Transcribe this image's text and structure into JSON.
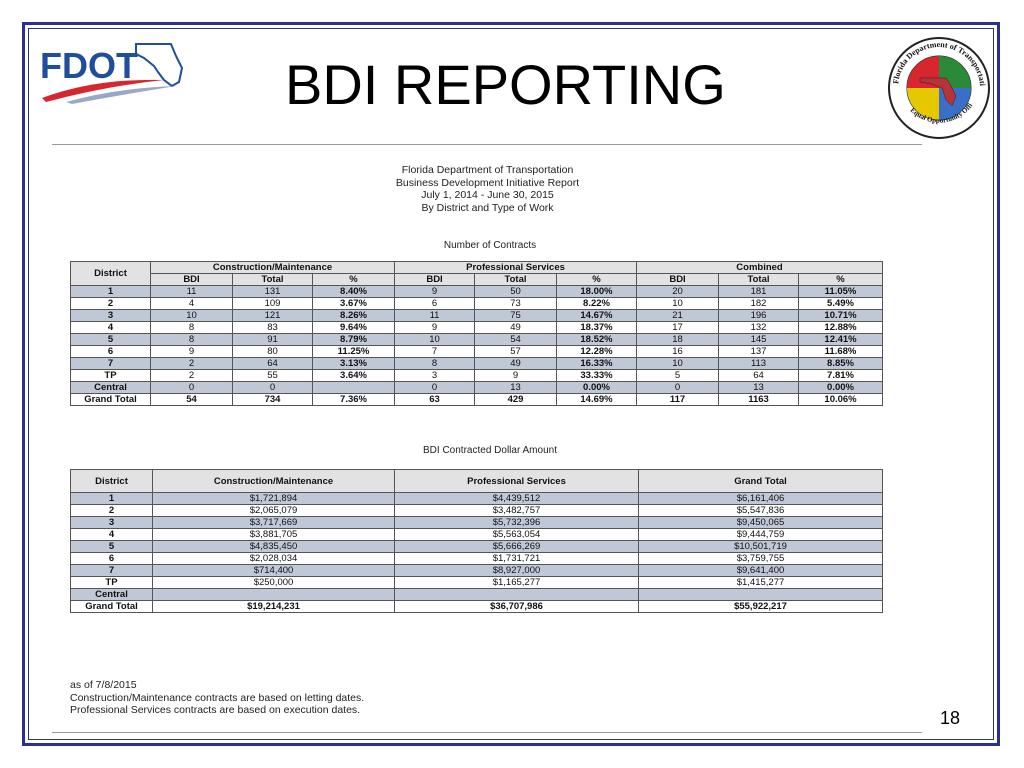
{
  "slide": {
    "title": "BDI REPORTING",
    "page_number": "18",
    "logo_text": "FDOT",
    "seal_text_top": "Florida Department of Transportation",
    "seal_text_bottom": "Equal Opportunity Office"
  },
  "report": {
    "line1": "Florida Department of Transportation",
    "line2": "Business Development Initiative Report",
    "line3": "July 1, 2014 - June 30, 2015",
    "line4": "By District and Type of Work"
  },
  "contracts_table": {
    "caption": "Number of Contracts",
    "district_label": "District",
    "group_headers": [
      "Construction/Maintenance",
      "Professional Services",
      "Combined"
    ],
    "sub_headers": [
      "BDI",
      "Total",
      "%",
      "BDI",
      "Total",
      "%",
      "BDI",
      "Total",
      "%"
    ],
    "rows": [
      {
        "district": "1",
        "cells": [
          "11",
          "131",
          "8.40%",
          "9",
          "50",
          "18.00%",
          "20",
          "181",
          "11.05%"
        ]
      },
      {
        "district": "2",
        "cells": [
          "4",
          "109",
          "3.67%",
          "6",
          "73",
          "8.22%",
          "10",
          "182",
          "5.49%"
        ]
      },
      {
        "district": "3",
        "cells": [
          "10",
          "121",
          "8.26%",
          "11",
          "75",
          "14.67%",
          "21",
          "196",
          "10.71%"
        ]
      },
      {
        "district": "4",
        "cells": [
          "8",
          "83",
          "9.64%",
          "9",
          "49",
          "18.37%",
          "17",
          "132",
          "12.88%"
        ]
      },
      {
        "district": "5",
        "cells": [
          "8",
          "91",
          "8.79%",
          "10",
          "54",
          "18.52%",
          "18",
          "145",
          "12.41%"
        ]
      },
      {
        "district": "6",
        "cells": [
          "9",
          "80",
          "11.25%",
          "7",
          "57",
          "12.28%",
          "16",
          "137",
          "11.68%"
        ]
      },
      {
        "district": "7",
        "cells": [
          "2",
          "64",
          "3.13%",
          "8",
          "49",
          "16.33%",
          "10",
          "113",
          "8.85%"
        ]
      },
      {
        "district": "TP",
        "cells": [
          "2",
          "55",
          "3.64%",
          "3",
          "9",
          "33.33%",
          "5",
          "64",
          "7.81%"
        ]
      },
      {
        "district": "Central",
        "cells": [
          "0",
          "0",
          "",
          "0",
          "13",
          "0.00%",
          "0",
          "13",
          "0.00%"
        ]
      }
    ],
    "grand_total": {
      "district": "Grand Total",
      "cells": [
        "54",
        "734",
        "7.36%",
        "63",
        "429",
        "14.69%",
        "117",
        "1163",
        "10.06%"
      ]
    }
  },
  "dollars_table": {
    "caption": "BDI Contracted Dollar Amount",
    "headers": [
      "District",
      "Construction/Maintenance",
      "Professional Services",
      "Grand Total"
    ],
    "rows": [
      {
        "district": "1",
        "cells": [
          "$1,721,894",
          "$4,439,512",
          "$6,161,406"
        ]
      },
      {
        "district": "2",
        "cells": [
          "$2,065,079",
          "$3,482,757",
          "$5,547,836"
        ]
      },
      {
        "district": "3",
        "cells": [
          "$3,717,669",
          "$5,732,396",
          "$9,450,065"
        ]
      },
      {
        "district": "4",
        "cells": [
          "$3,881,705",
          "$5,563,054",
          "$9,444,759"
        ]
      },
      {
        "district": "5",
        "cells": [
          "$4,835,450",
          "$5,666,269",
          "$10,501,719"
        ]
      },
      {
        "district": "6",
        "cells": [
          "$2,028,034",
          "$1,731,721",
          "$3,759,755"
        ]
      },
      {
        "district": "7",
        "cells": [
          "$714,400",
          "$8,927,000",
          "$9,641,400"
        ]
      },
      {
        "district": "TP",
        "cells": [
          "$250,000",
          "$1,165,277",
          "$1,415,277"
        ]
      },
      {
        "district": "Central",
        "cells": [
          "",
          "",
          ""
        ]
      }
    ],
    "grand_total": {
      "district": "Grand Total",
      "cells": [
        "$19,214,231",
        "$36,707,986",
        "$55,922,217"
      ]
    }
  },
  "footnotes": {
    "line1": "as of 7/8/2015",
    "line2": "Construction/Maintenance contracts are based on letting dates.",
    "line3": "Professional Services contracts are based on execution dates."
  },
  "colors": {
    "frame": "#2b2f8f",
    "row_shade": "#c0c8d8",
    "fdot_blue": "#1f4e9c",
    "fdot_red": "#d7262d"
  }
}
